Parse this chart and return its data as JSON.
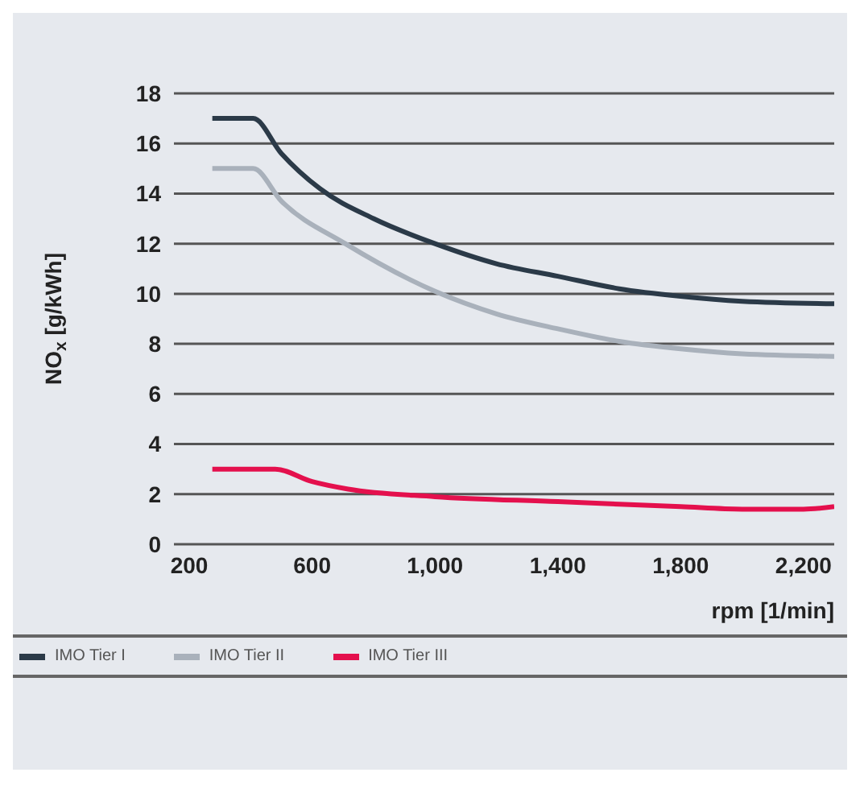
{
  "chart_data": {
    "type": "line",
    "ylabel": "NO$_{x}$ [g/kWh]",
    "xlabel": "rpm [1/min]",
    "xlim": [
      150,
      2300
    ],
    "xticks": [
      {
        "value": 200,
        "label": "200"
      },
      {
        "value": 600,
        "label": "600"
      },
      {
        "value": 1000,
        "label": "1,000"
      },
      {
        "value": 1400,
        "label": "1,400"
      },
      {
        "value": 1800,
        "label": "1,800"
      },
      {
        "value": 2200,
        "label": "2,200"
      }
    ],
    "ylim": [
      0,
      18
    ],
    "yticks": [
      0,
      2,
      4,
      6,
      8,
      10,
      12,
      14,
      16,
      18
    ],
    "grid": "y",
    "legend": "bottom",
    "line_style": "solid",
    "marker": "none",
    "series": [
      {
        "name": "IMO Tier I",
        "color": "#2b3a48",
        "x": [
          275,
          408,
          500,
          625,
          800,
          1000,
          1200,
          1400,
          1600,
          1800,
          2000,
          2300
        ],
        "values": [
          17,
          17,
          15.6,
          14.2,
          13,
          12,
          11.2,
          10.7,
          10.2,
          9.9,
          9.7,
          9.6
        ]
      },
      {
        "name": "IMO Tier II",
        "color": "#a9b1bb",
        "x": [
          275,
          408,
          500,
          708,
          1000,
          1200,
          1400,
          1600,
          1800,
          2000,
          2300
        ],
        "values": [
          15,
          15,
          13.7,
          12,
          10.1,
          9.2,
          8.6,
          8.1,
          7.8,
          7.6,
          7.5
        ]
      },
      {
        "name": "IMO Tier III",
        "color": "#e4104d",
        "x": [
          275,
          480,
          600,
          717,
          1000,
          1400,
          1800,
          2000,
          2200,
          2300
        ],
        "values": [
          3,
          3,
          2.5,
          2.2,
          1.9,
          1.7,
          1.5,
          1.4,
          1.4,
          1.5
        ]
      }
    ]
  }
}
